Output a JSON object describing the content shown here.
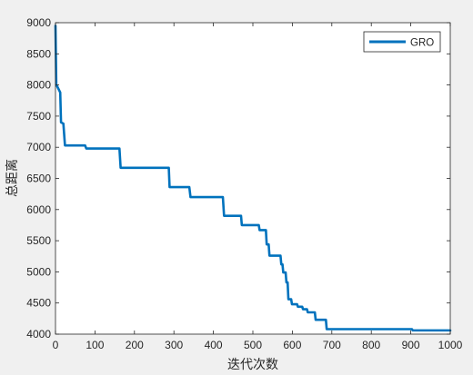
{
  "chart_data": {
    "type": "line",
    "xlabel": "迭代次数",
    "ylabel": "总距离",
    "xlim": [
      0,
      1000
    ],
    "ylim": [
      4000,
      9000
    ],
    "x_ticks": [
      0,
      100,
      200,
      300,
      400,
      500,
      600,
      700,
      800,
      900,
      1000
    ],
    "y_ticks": [
      4000,
      4500,
      5000,
      5500,
      6000,
      6500,
      7000,
      7500,
      8000,
      8500,
      9000
    ],
    "grid": false,
    "legend_position": "top-right",
    "series": [
      {
        "name": "GRO",
        "color": "#0072bd",
        "step": true,
        "points": [
          [
            0,
            8950
          ],
          [
            2,
            8000
          ],
          [
            5,
            7970
          ],
          [
            12,
            7880
          ],
          [
            14,
            7400
          ],
          [
            20,
            7380
          ],
          [
            24,
            7030
          ],
          [
            75,
            7030
          ],
          [
            78,
            6980
          ],
          [
            162,
            6980
          ],
          [
            165,
            6670
          ],
          [
            287,
            6670
          ],
          [
            289,
            6360
          ],
          [
            339,
            6360
          ],
          [
            342,
            6200
          ],
          [
            424,
            6200
          ],
          [
            427,
            5900
          ],
          [
            470,
            5900
          ],
          [
            472,
            5750
          ],
          [
            515,
            5750
          ],
          [
            517,
            5670
          ],
          [
            533,
            5670
          ],
          [
            535,
            5440
          ],
          [
            540,
            5440
          ],
          [
            542,
            5260
          ],
          [
            570,
            5260
          ],
          [
            572,
            5120
          ],
          [
            575,
            5120
          ],
          [
            577,
            4990
          ],
          [
            583,
            4990
          ],
          [
            585,
            4830
          ],
          [
            588,
            4830
          ],
          [
            590,
            4560
          ],
          [
            597,
            4560
          ],
          [
            599,
            4480
          ],
          [
            612,
            4480
          ],
          [
            614,
            4440
          ],
          [
            625,
            4440
          ],
          [
            627,
            4400
          ],
          [
            637,
            4400
          ],
          [
            639,
            4350
          ],
          [
            657,
            4350
          ],
          [
            659,
            4230
          ],
          [
            685,
            4230
          ],
          [
            687,
            4080
          ],
          [
            903,
            4080
          ],
          [
            905,
            4060
          ],
          [
            1000,
            4060
          ]
        ]
      }
    ]
  }
}
